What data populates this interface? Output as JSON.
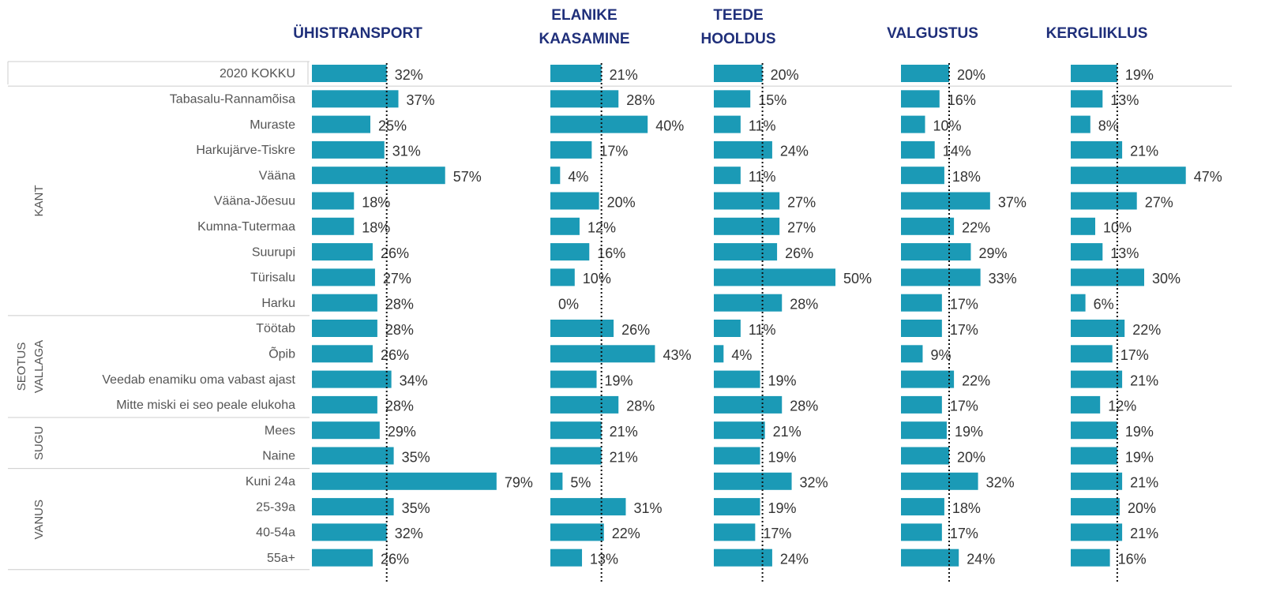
{
  "total_label": "2020 KOKKU",
  "groups": [
    {
      "label_lines": [
        "KANT"
      ],
      "categories": [
        "Tabasalu-Rannamõisa",
        "Muraste",
        "Harkujärve-Tiskre",
        "Vääna",
        "Vääna-Jõesuu",
        "Kumna-Tutermaa",
        "Suurupi",
        "Türisalu",
        "Harku"
      ]
    },
    {
      "label_lines": [
        "SEOTUS",
        "VALLAGA"
      ],
      "categories": [
        "Töötab",
        "Õpib",
        "Veedab enamiku oma vabast ajast",
        "Mitte miski ei seo peale elukoha"
      ]
    },
    {
      "label_lines": [
        "SUGU"
      ],
      "categories": [
        "Mees",
        "Naine"
      ]
    },
    {
      "label_lines": [
        "VANUS"
      ],
      "categories": [
        "Kuni 24a",
        "25-39a",
        "40-54a",
        "55a+"
      ]
    }
  ],
  "chart_data": [
    {
      "type": "bar",
      "title_lines": [
        "ÜHISTRANSPORT"
      ],
      "color": "#1b9ab6",
      "values": [
        32,
        37,
        25,
        31,
        57,
        18,
        18,
        26,
        27,
        28,
        28,
        26,
        34,
        28,
        29,
        35,
        79,
        35,
        32,
        26
      ],
      "value_labels": [
        "32%",
        "37%",
        "25%",
        "31%",
        "57%",
        "18%",
        "18%",
        "26%",
        "27%",
        "28%",
        "28%",
        "26%",
        "34%",
        "28%",
        "29%",
        "35%",
        "79%",
        "35%",
        "32%",
        "26%"
      ]
    },
    {
      "type": "bar",
      "title_lines": [
        "ELANIKE",
        "KAASAMINE"
      ],
      "color": "#1b9ab6",
      "values": [
        21,
        28,
        40,
        17,
        4,
        20,
        12,
        16,
        10,
        0,
        26,
        43,
        19,
        28,
        21,
        21,
        5,
        31,
        22,
        13
      ],
      "value_labels": [
        "21%",
        "28%",
        "40%",
        "17%",
        "4%",
        "20%",
        "12%",
        "16%",
        "10%",
        "0%",
        "26%",
        "43%",
        "19%",
        "28%",
        "21%",
        "21%",
        "5%",
        "31%",
        "22%",
        "13%"
      ]
    },
    {
      "type": "bar",
      "title_lines": [
        "TEEDE",
        "HOOLDUS"
      ],
      "color": "#1b9ab6",
      "values": [
        20,
        15,
        11,
        24,
        11,
        27,
        27,
        26,
        50,
        28,
        11,
        4,
        19,
        28,
        21,
        19,
        32,
        19,
        17,
        24
      ],
      "value_labels": [
        "20%",
        "15%",
        "11%",
        "24%",
        "11%",
        "27%",
        "27%",
        "26%",
        "50%",
        "28%",
        "11%",
        "4%",
        "19%",
        "28%",
        "21%",
        "19%",
        "32%",
        "19%",
        "17%",
        "24%"
      ]
    },
    {
      "type": "bar",
      "title_lines": [
        "VALGUSTUS"
      ],
      "color": "#1b9ab6",
      "values": [
        20,
        16,
        10,
        14,
        18,
        37,
        22,
        29,
        33,
        17,
        17,
        9,
        22,
        17,
        19,
        20,
        32,
        18,
        17,
        24
      ],
      "value_labels": [
        "20%",
        "16%",
        "10%",
        "14%",
        "18%",
        "37%",
        "22%",
        "29%",
        "33%",
        "17%",
        "17%",
        "9%",
        "22%",
        "17%",
        "19%",
        "20%",
        "32%",
        "18%",
        "17%",
        "24%"
      ]
    },
    {
      "type": "bar",
      "title_lines": [
        "KERGLIIKLUS"
      ],
      "color": "#1b9ab6",
      "values": [
        19,
        13,
        8,
        21,
        47,
        27,
        10,
        13,
        30,
        6,
        22,
        17,
        21,
        12,
        19,
        19,
        21,
        20,
        21,
        16
      ],
      "value_labels": [
        "19%",
        "13%",
        "8%",
        "21%",
        "47%",
        "27%",
        "10%",
        "13%",
        "30%",
        "6%",
        "22%",
        "17%",
        "21%",
        "12%",
        "19%",
        "19%",
        "21%",
        "20%",
        "21%",
        "16%"
      ]
    }
  ]
}
